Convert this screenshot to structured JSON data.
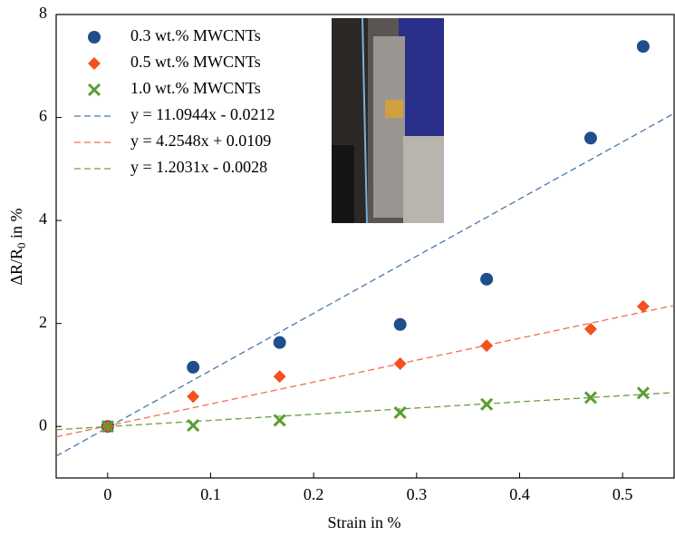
{
  "chart_data": {
    "type": "scatter",
    "xlabel": "Strain in %",
    "ylabel": [
      "ΔR/R",
      "0",
      " in %"
    ],
    "xlim": [
      -0.05,
      0.55
    ],
    "ylim": [
      -1,
      8
    ],
    "xticks": [
      0,
      0.1,
      0.2,
      0.3,
      0.4,
      0.5
    ],
    "yticks": [
      0,
      2,
      4,
      6,
      8
    ],
    "legend": "upper-left",
    "series": [
      {
        "name": "0.3 wt.% MWCNTs",
        "color": "#1f4e8c",
        "marker": "circle",
        "x": [
          0,
          0.083,
          0.167,
          0.284,
          0.368,
          0.469,
          0.52
        ],
        "values": [
          0,
          1.15,
          1.63,
          1.98,
          2.86,
          5.6,
          7.38
        ]
      },
      {
        "name": "0.5 wt.% MWCNTs",
        "color": "#f5501e",
        "marker": "diamond",
        "x": [
          0,
          0.083,
          0.167,
          0.284,
          0.368,
          0.469,
          0.52
        ],
        "values": [
          0,
          0.58,
          0.97,
          1.22,
          1.57,
          1.89,
          2.33
        ]
      },
      {
        "name": "1.0 wt.% MWCNTs",
        "color": "#5a9e2f",
        "marker": "x",
        "x": [
          0,
          0.083,
          0.167,
          0.284,
          0.368,
          0.469,
          0.52
        ],
        "values": [
          0,
          0.02,
          0.12,
          0.27,
          0.43,
          0.56,
          0.65
        ]
      }
    ],
    "fits": [
      {
        "name": "y = 11.0944x - 0.0212",
        "color": "#4a78a8",
        "slope": 11.0944,
        "intercept": -0.0212
      },
      {
        "name": "y = 4.2548x + 0.0109",
        "color": "#f07050",
        "slope": 4.2548,
        "intercept": 0.0109
      },
      {
        "name": "y = 1.2031x - 0.0028",
        "color": "#6aa040",
        "slope": 1.2031,
        "intercept": -0.0028
      }
    ]
  }
}
